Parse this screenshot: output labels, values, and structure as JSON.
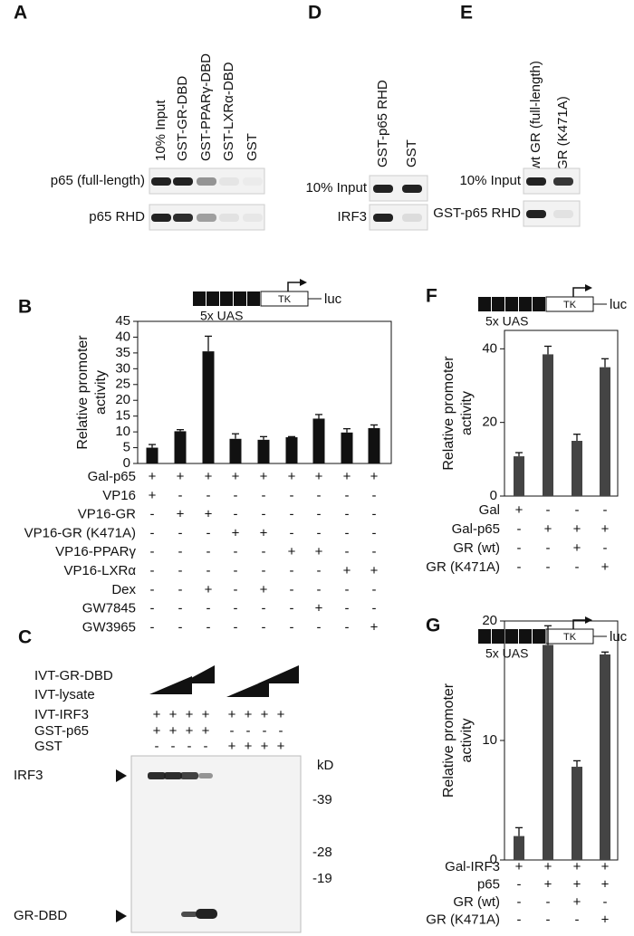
{
  "blots": {
    "A": {
      "label": "A",
      "lanes": [
        "10% Input",
        "GST-GR-DBD",
        "GST-PPARγ-DBD",
        "GST-LXRα-DBD",
        "GST"
      ],
      "rows": [
        "p65 (full-length)",
        "p65 RHD"
      ]
    },
    "D": {
      "label": "D",
      "lanes": [
        "GST-p65 RHD",
        "GST"
      ],
      "rows": [
        "10% Input",
        "IRF3"
      ]
    },
    "E": {
      "label": "E",
      "lanes": [
        "wt GR (full-length)",
        "GR (K471A)"
      ],
      "rows": [
        "10% Input",
        "GST-p65 RHD"
      ]
    }
  },
  "panel_c": {
    "label": "C",
    "wedge_rows": [
      "IVT-GR-DBD",
      "IVT-lysate"
    ],
    "conditions": [
      {
        "label": "IVT-IRF3",
        "marks": [
          "+",
          "+",
          "+",
          "+",
          "+",
          "+",
          "+",
          "+"
        ]
      },
      {
        "label": "GST-p65",
        "marks": [
          "+",
          "+",
          "+",
          "+",
          "-",
          "-",
          "-",
          "-"
        ]
      },
      {
        "label": "GST",
        "marks": [
          "-",
          "-",
          "-",
          "-",
          "+",
          "+",
          "+",
          "+"
        ]
      }
    ],
    "bands": [
      "IRF3",
      "GR-DBD"
    ],
    "kd_label": "kD",
    "markers": [
      "-39",
      "-28",
      "-19"
    ]
  },
  "chart_data": [
    {
      "type": "bar",
      "panel_label": "B",
      "promoter": {
        "repeat_label": "5x UAS",
        "tk": "TK",
        "reporter": "luc"
      },
      "ylabel": [
        "Relative promoter",
        "activity"
      ],
      "values": [
        5,
        10.2,
        35.5,
        7.8,
        7.5,
        8.3,
        14.2,
        9.8,
        11.2
      ],
      "errors": [
        1,
        0.5,
        4.8,
        1.6,
        1,
        0.2,
        1.3,
        1.2,
        1
      ],
      "color": "#111111",
      "ylim": [
        0,
        45
      ],
      "yticks": [
        0,
        5,
        10,
        15,
        20,
        25,
        30,
        35,
        40,
        45
      ],
      "conditions": [
        {
          "label": "Gal-p65",
          "marks": [
            "+",
            "+",
            "+",
            "+",
            "+",
            "+",
            "+",
            "+",
            "+"
          ]
        },
        {
          "label": "VP16",
          "marks": [
            "+",
            "-",
            "-",
            "-",
            "-",
            "-",
            "-",
            "-",
            "-"
          ]
        },
        {
          "label": "VP16-GR",
          "marks": [
            "-",
            "+",
            "+",
            "-",
            "-",
            "-",
            "-",
            "-",
            "-"
          ]
        },
        {
          "label": "VP16-GR (K471A)",
          "marks": [
            "-",
            "-",
            "-",
            "+",
            "+",
            "-",
            "-",
            "-",
            "-"
          ]
        },
        {
          "label": "VP16-PPARγ",
          "marks": [
            "-",
            "-",
            "-",
            "-",
            "-",
            "+",
            "+",
            "-",
            "-"
          ]
        },
        {
          "label": "VP16-LXRα",
          "marks": [
            "-",
            "-",
            "-",
            "-",
            "-",
            "-",
            "-",
            "+",
            "+"
          ]
        },
        {
          "label": "Dex",
          "marks": [
            "-",
            "-",
            "+",
            "-",
            "+",
            "-",
            "-",
            "-",
            "-"
          ]
        },
        {
          "label": "GW7845",
          "marks": [
            "-",
            "-",
            "-",
            "-",
            "-",
            "-",
            "+",
            "-",
            "-"
          ]
        },
        {
          "label": "GW3965",
          "marks": [
            "-",
            "-",
            "-",
            "-",
            "-",
            "-",
            "-",
            "-",
            "+"
          ]
        }
      ]
    },
    {
      "type": "bar",
      "panel_label": "F",
      "promoter": {
        "repeat_label": "5x UAS",
        "tk": "TK",
        "reporter": "luc"
      },
      "ylabel": [
        "Relative promoter",
        "activity"
      ],
      "values": [
        10.8,
        38.5,
        15,
        35
      ],
      "errors": [
        1,
        2.2,
        1.8,
        2.3
      ],
      "color": "#444444",
      "ylim": [
        0,
        45
      ],
      "yticks": [
        0,
        20,
        40
      ],
      "conditions": [
        {
          "label": "Gal",
          "marks": [
            "+",
            "-",
            "-",
            "-"
          ]
        },
        {
          "label": "Gal-p65",
          "marks": [
            "-",
            "+",
            "+",
            "+"
          ]
        },
        {
          "label": "GR (wt)",
          "marks": [
            "-",
            "-",
            "+",
            "-"
          ]
        },
        {
          "label": "GR (K471A)",
          "marks": [
            "-",
            "-",
            "-",
            "+"
          ]
        }
      ]
    },
    {
      "type": "bar",
      "panel_label": "G",
      "promoter": {
        "repeat_label": "5x UAS",
        "tk": "TK",
        "reporter": "luc"
      },
      "ylabel": [
        "Relative promoter",
        "activity"
      ],
      "values": [
        2,
        18,
        7.8,
        17.2
      ],
      "errors": [
        0.7,
        1.6,
        0.5,
        0.2
      ],
      "color": "#444444",
      "ylim": [
        0,
        20
      ],
      "yticks": [
        0,
        10,
        20
      ],
      "conditions": [
        {
          "label": "Gal-IRF3",
          "marks": [
            "+",
            "+",
            "+",
            "+"
          ]
        },
        {
          "label": "p65",
          "marks": [
            "-",
            "+",
            "+",
            "+"
          ]
        },
        {
          "label": "GR (wt)",
          "marks": [
            "-",
            "-",
            "+",
            "-"
          ]
        },
        {
          "label": "GR (K471A)",
          "marks": [
            "-",
            "-",
            "-",
            "+"
          ]
        }
      ]
    }
  ]
}
